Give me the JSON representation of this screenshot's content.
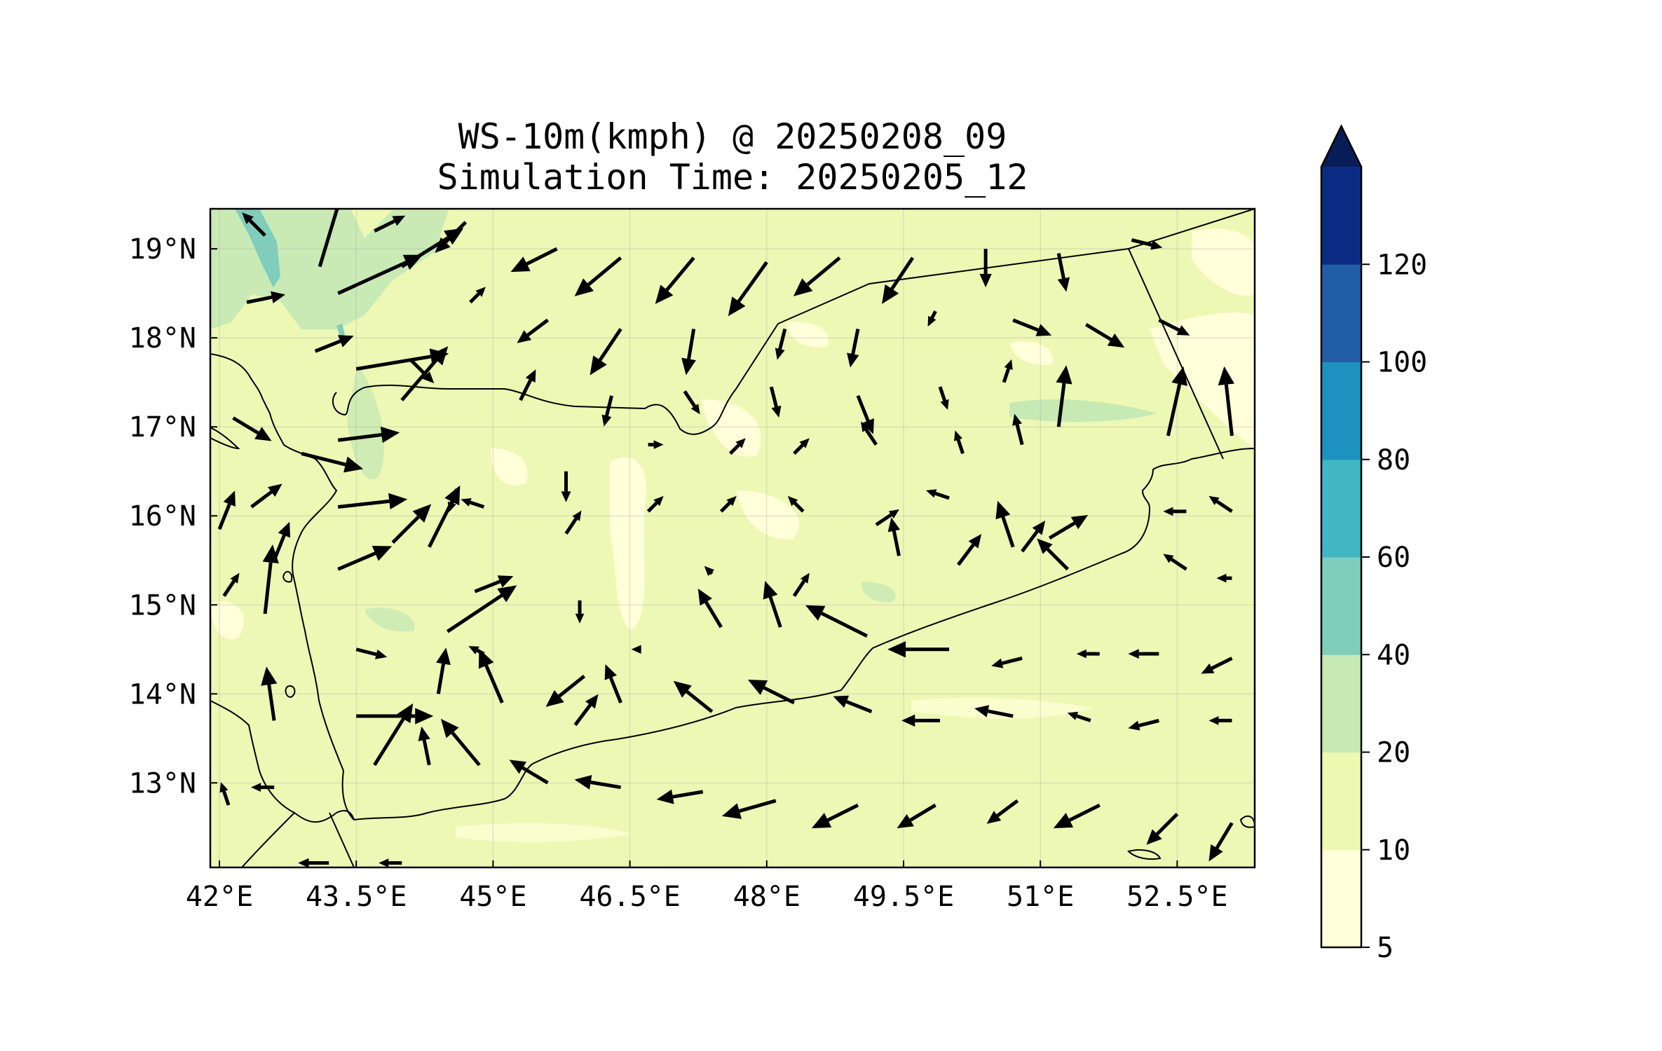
{
  "title": {
    "line1": "WS-10m(kmph) @ 20250208_09",
    "line2": "Simulation Time: 20250205_12"
  },
  "map": {
    "lon_range": [
      41.9,
      53.35
    ],
    "lat_range": [
      12.05,
      19.45
    ],
    "x_ticks": [
      "42°E",
      "43.5°E",
      "45°E",
      "46.5°E",
      "48°E",
      "49.5°E",
      "51°E",
      "52.5°E"
    ],
    "x_tick_values": [
      42,
      43.5,
      45,
      46.5,
      48,
      49.5,
      51,
      52.5
    ],
    "y_ticks": [
      "13°N",
      "14°N",
      "15°N",
      "16°N",
      "17°N",
      "18°N",
      "19°N"
    ],
    "y_tick_values": [
      13,
      14,
      15,
      16,
      17,
      18,
      19
    ],
    "background_color": "#edf8b4"
  },
  "colorbar": {
    "levels": [
      5,
      10,
      20,
      40,
      60,
      80,
      100,
      120
    ],
    "labels": [
      "5",
      "10",
      "20",
      "40",
      "60",
      "80",
      "100",
      "120"
    ],
    "colors": [
      "#ffffd9",
      "#edf8b1",
      "#c7e9b4",
      "#7fcdbb",
      "#41b6c4",
      "#1d91c0",
      "#225ea8",
      "#0c2c84"
    ],
    "extend_color": "#081d58",
    "extend": "max"
  },
  "chart_data": {
    "type": "quiver",
    "variable": "WS-10m(kmph)",
    "valid_time": "20250208_09",
    "simulation_time": "20250205_12",
    "vectors": [
      {
        "lon": 42.5,
        "lat": 19.15,
        "u": -3,
        "v": 3
      },
      {
        "lon": 43.1,
        "lat": 18.8,
        "u": 3,
        "v": 10
      },
      {
        "lon": 43.7,
        "lat": 19.2,
        "u": 4,
        "v": 2
      },
      {
        "lon": 44.0,
        "lat": 18.8,
        "u": 8,
        "v": 5
      },
      {
        "lon": 44.7,
        "lat": 19.3,
        "u": -4,
        "v": -4
      },
      {
        "lon": 45.7,
        "lat": 19.0,
        "u": -6,
        "v": -3
      },
      {
        "lon": 46.4,
        "lat": 18.9,
        "u": -6,
        "v": -5
      },
      {
        "lon": 47.2,
        "lat": 18.9,
        "u": -5,
        "v": -6
      },
      {
        "lon": 48.0,
        "lat": 18.85,
        "u": -5,
        "v": -7
      },
      {
        "lon": 48.8,
        "lat": 18.9,
        "u": -6,
        "v": -5
      },
      {
        "lon": 49.6,
        "lat": 18.9,
        "u": -4,
        "v": -6
      },
      {
        "lon": 50.4,
        "lat": 19.0,
        "u": 0,
        "v": -5
      },
      {
        "lon": 51.2,
        "lat": 18.95,
        "u": 1,
        "v": -5
      },
      {
        "lon": 52.0,
        "lat": 19.1,
        "u": 4,
        "v": -1
      },
      {
        "lon": 42.3,
        "lat": 18.4,
        "u": 5,
        "v": 1
      },
      {
        "lon": 43.3,
        "lat": 18.5,
        "u": 11,
        "v": 5
      },
      {
        "lon": 44.75,
        "lat": 18.4,
        "u": 2,
        "v": 2
      },
      {
        "lon": 45.6,
        "lat": 18.2,
        "u": -4,
        "v": -3
      },
      {
        "lon": 46.4,
        "lat": 18.1,
        "u": -4,
        "v": -6
      },
      {
        "lon": 47.2,
        "lat": 18.1,
        "u": -1,
        "v": -6
      },
      {
        "lon": 48.2,
        "lat": 18.1,
        "u": -1,
        "v": -4
      },
      {
        "lon": 49.0,
        "lat": 18.1,
        "u": -1,
        "v": -5
      },
      {
        "lon": 49.85,
        "lat": 18.3,
        "u": -1,
        "v": -2
      },
      {
        "lon": 50.7,
        "lat": 18.2,
        "u": 5,
        "v": -2
      },
      {
        "lon": 51.5,
        "lat": 18.15,
        "u": 5,
        "v": -3
      },
      {
        "lon": 52.3,
        "lat": 18.2,
        "u": 4,
        "v": -2
      },
      {
        "lon": 43.05,
        "lat": 17.85,
        "u": 5,
        "v": 2
      },
      {
        "lon": 43.5,
        "lat": 17.65,
        "u": 12,
        "v": 2
      },
      {
        "lon": 44.1,
        "lat": 17.75,
        "u": 3,
        "v": -3
      },
      {
        "lon": 44.0,
        "lat": 17.3,
        "u": 6,
        "v": 7
      },
      {
        "lon": 45.3,
        "lat": 17.3,
        "u": 2,
        "v": 4
      },
      {
        "lon": 46.3,
        "lat": 17.35,
        "u": -1,
        "v": -4
      },
      {
        "lon": 47.1,
        "lat": 17.4,
        "u": 2,
        "v": -3
      },
      {
        "lon": 48.05,
        "lat": 17.45,
        "u": 1,
        "v": -4
      },
      {
        "lon": 49.0,
        "lat": 17.35,
        "u": 2,
        "v": -5
      },
      {
        "lon": 49.9,
        "lat": 17.45,
        "u": 1,
        "v": -3
      },
      {
        "lon": 50.6,
        "lat": 17.5,
        "u": 1,
        "v": 3
      },
      {
        "lon": 51.2,
        "lat": 17.0,
        "u": 1,
        "v": 8
      },
      {
        "lon": 52.4,
        "lat": 16.9,
        "u": 2,
        "v": 9
      },
      {
        "lon": 53.1,
        "lat": 16.9,
        "u": -1,
        "v": 9
      },
      {
        "lon": 42.15,
        "lat": 17.1,
        "u": 5,
        "v": -3
      },
      {
        "lon": 42.9,
        "lat": 16.7,
        "u": 8,
        "v": -2
      },
      {
        "lon": 43.3,
        "lat": 16.85,
        "u": 8,
        "v": 1
      },
      {
        "lon": 44.6,
        "lat": 16.3,
        "u": -1,
        "v": -3
      },
      {
        "lon": 45.8,
        "lat": 16.5,
        "u": 0,
        "v": -4
      },
      {
        "lon": 46.7,
        "lat": 16.8,
        "u": 2,
        "v": 0
      },
      {
        "lon": 47.6,
        "lat": 16.7,
        "u": 2,
        "v": 2
      },
      {
        "lon": 48.3,
        "lat": 16.7,
        "u": 2,
        "v": 2
      },
      {
        "lon": 49.2,
        "lat": 16.8,
        "u": -2,
        "v": 3
      },
      {
        "lon": 50.15,
        "lat": 16.7,
        "u": -1,
        "v": 3
      },
      {
        "lon": 50.8,
        "lat": 16.8,
        "u": -1,
        "v": 4
      },
      {
        "lon": 42.35,
        "lat": 16.1,
        "u": 4,
        "v": 3
      },
      {
        "lon": 43.3,
        "lat": 16.1,
        "u": 9,
        "v": 1
      },
      {
        "lon": 43.9,
        "lat": 15.7,
        "u": 5,
        "v": 5
      },
      {
        "lon": 44.9,
        "lat": 16.1,
        "u": -3,
        "v": 1
      },
      {
        "lon": 45.8,
        "lat": 15.8,
        "u": 2,
        "v": 3
      },
      {
        "lon": 46.7,
        "lat": 16.05,
        "u": 2,
        "v": 2
      },
      {
        "lon": 47.5,
        "lat": 16.05,
        "u": 2,
        "v": 2
      },
      {
        "lon": 48.4,
        "lat": 16.05,
        "u": -2,
        "v": 2
      },
      {
        "lon": 49.2,
        "lat": 15.9,
        "u": 3,
        "v": 2
      },
      {
        "lon": 50.0,
        "lat": 16.2,
        "u": -3,
        "v": 1
      },
      {
        "lon": 50.8,
        "lat": 15.6,
        "u": 3,
        "v": 4
      },
      {
        "lon": 51.1,
        "lat": 15.75,
        "u": 5,
        "v": 3
      },
      {
        "lon": 52.6,
        "lat": 16.05,
        "u": -3,
        "v": 0
      },
      {
        "lon": 53.1,
        "lat": 16.05,
        "u": -3,
        "v": 2
      },
      {
        "lon": 42.0,
        "lat": 15.85,
        "u": 2,
        "v": 5
      },
      {
        "lon": 42.6,
        "lat": 15.5,
        "u": 2,
        "v": 5
      },
      {
        "lon": 43.3,
        "lat": 15.4,
        "u": 7,
        "v": 3
      },
      {
        "lon": 44.3,
        "lat": 15.65,
        "u": 4,
        "v": 8
      },
      {
        "lon": 44.8,
        "lat": 15.15,
        "u": 5,
        "v": 2
      },
      {
        "lon": 45.95,
        "lat": 15.05,
        "u": 0,
        "v": -3
      },
      {
        "lon": 47.4,
        "lat": 15.35,
        "u": -1,
        "v": 1
      },
      {
        "lon": 48.3,
        "lat": 15.1,
        "u": 2,
        "v": 3
      },
      {
        "lon": 49.45,
        "lat": 15.55,
        "u": -1,
        "v": 5
      },
      {
        "lon": 50.1,
        "lat": 15.45,
        "u": 3,
        "v": 4
      },
      {
        "lon": 50.7,
        "lat": 15.65,
        "u": -2,
        "v": 6
      },
      {
        "lon": 51.3,
        "lat": 15.4,
        "u": -4,
        "v": 4
      },
      {
        "lon": 52.6,
        "lat": 15.4,
        "u": -3,
        "v": 2
      },
      {
        "lon": 53.1,
        "lat": 15.3,
        "u": -2,
        "v": 0
      },
      {
        "lon": 42.05,
        "lat": 15.1,
        "u": 2,
        "v": 3
      },
      {
        "lon": 42.5,
        "lat": 14.9,
        "u": 1,
        "v": 9
      },
      {
        "lon": 43.5,
        "lat": 14.5,
        "u": 4,
        "v": -1
      },
      {
        "lon": 44.5,
        "lat": 14.7,
        "u": 9,
        "v": 6
      },
      {
        "lon": 44.9,
        "lat": 14.45,
        "u": -2,
        "v": 1
      },
      {
        "lon": 46.0,
        "lat": 14.2,
        "u": -5,
        "v": -4
      },
      {
        "lon": 46.6,
        "lat": 14.5,
        "u": -1,
        "v": 0
      },
      {
        "lon": 47.5,
        "lat": 14.75,
        "u": -3,
        "v": 5
      },
      {
        "lon": 48.15,
        "lat": 14.75,
        "u": -2,
        "v": 6
      },
      {
        "lon": 49.1,
        "lat": 14.65,
        "u": -8,
        "v": 4
      },
      {
        "lon": 50.0,
        "lat": 14.5,
        "u": -8,
        "v": 0
      },
      {
        "lon": 50.8,
        "lat": 14.4,
        "u": -4,
        "v": -1
      },
      {
        "lon": 51.65,
        "lat": 14.45,
        "u": -3,
        "v": 0
      },
      {
        "lon": 52.3,
        "lat": 14.45,
        "u": -4,
        "v": 0
      },
      {
        "lon": 53.1,
        "lat": 14.4,
        "u": -4,
        "v": -2
      },
      {
        "lon": 42.6,
        "lat": 13.7,
        "u": -1,
        "v": 7
      },
      {
        "lon": 43.5,
        "lat": 13.75,
        "u": 10,
        "v": 0
      },
      {
        "lon": 44.4,
        "lat": 14.0,
        "u": 1,
        "v": 6
      },
      {
        "lon": 45.1,
        "lat": 13.9,
        "u": -3,
        "v": 7
      },
      {
        "lon": 45.9,
        "lat": 13.65,
        "u": 3,
        "v": 4
      },
      {
        "lon": 46.4,
        "lat": 13.9,
        "u": -2,
        "v": 5
      },
      {
        "lon": 47.4,
        "lat": 13.8,
        "u": -5,
        "v": 4
      },
      {
        "lon": 48.3,
        "lat": 13.9,
        "u": -6,
        "v": 3
      },
      {
        "lon": 49.15,
        "lat": 13.8,
        "u": -5,
        "v": 2
      },
      {
        "lon": 49.9,
        "lat": 13.7,
        "u": -5,
        "v": 0
      },
      {
        "lon": 50.7,
        "lat": 13.75,
        "u": -5,
        "v": 1
      },
      {
        "lon": 51.55,
        "lat": 13.7,
        "u": -3,
        "v": 1
      },
      {
        "lon": 52.3,
        "lat": 13.7,
        "u": -4,
        "v": -1
      },
      {
        "lon": 53.1,
        "lat": 13.7,
        "u": -3,
        "v": 0
      },
      {
        "lon": 42.1,
        "lat": 12.75,
        "u": -1,
        "v": 3
      },
      {
        "lon": 42.6,
        "lat": 12.95,
        "u": -3,
        "v": 0
      },
      {
        "lon": 43.7,
        "lat": 13.2,
        "u": 5,
        "v": 8
      },
      {
        "lon": 44.3,
        "lat": 13.2,
        "u": -1,
        "v": 5
      },
      {
        "lon": 44.85,
        "lat": 13.2,
        "u": -5,
        "v": 6
      },
      {
        "lon": 45.6,
        "lat": 13.0,
        "u": -5,
        "v": 3
      },
      {
        "lon": 46.4,
        "lat": 12.95,
        "u": -6,
        "v": 1
      },
      {
        "lon": 47.3,
        "lat": 12.9,
        "u": -6,
        "v": -1
      },
      {
        "lon": 48.1,
        "lat": 12.8,
        "u": -7,
        "v": -2
      },
      {
        "lon": 49.0,
        "lat": 12.75,
        "u": -6,
        "v": -3
      },
      {
        "lon": 49.85,
        "lat": 12.75,
        "u": -5,
        "v": -3
      },
      {
        "lon": 50.75,
        "lat": 12.8,
        "u": -4,
        "v": -3
      },
      {
        "lon": 51.65,
        "lat": 12.75,
        "u": -6,
        "v": -3
      },
      {
        "lon": 52.5,
        "lat": 12.65,
        "u": -4,
        "v": -4
      },
      {
        "lon": 53.1,
        "lat": 12.55,
        "u": -3,
        "v": -5
      },
      {
        "lon": 43.2,
        "lat": 12.1,
        "u": -4,
        "v": 0
      },
      {
        "lon": 44.0,
        "lat": 12.1,
        "u": -3,
        "v": 0
      }
    ]
  }
}
